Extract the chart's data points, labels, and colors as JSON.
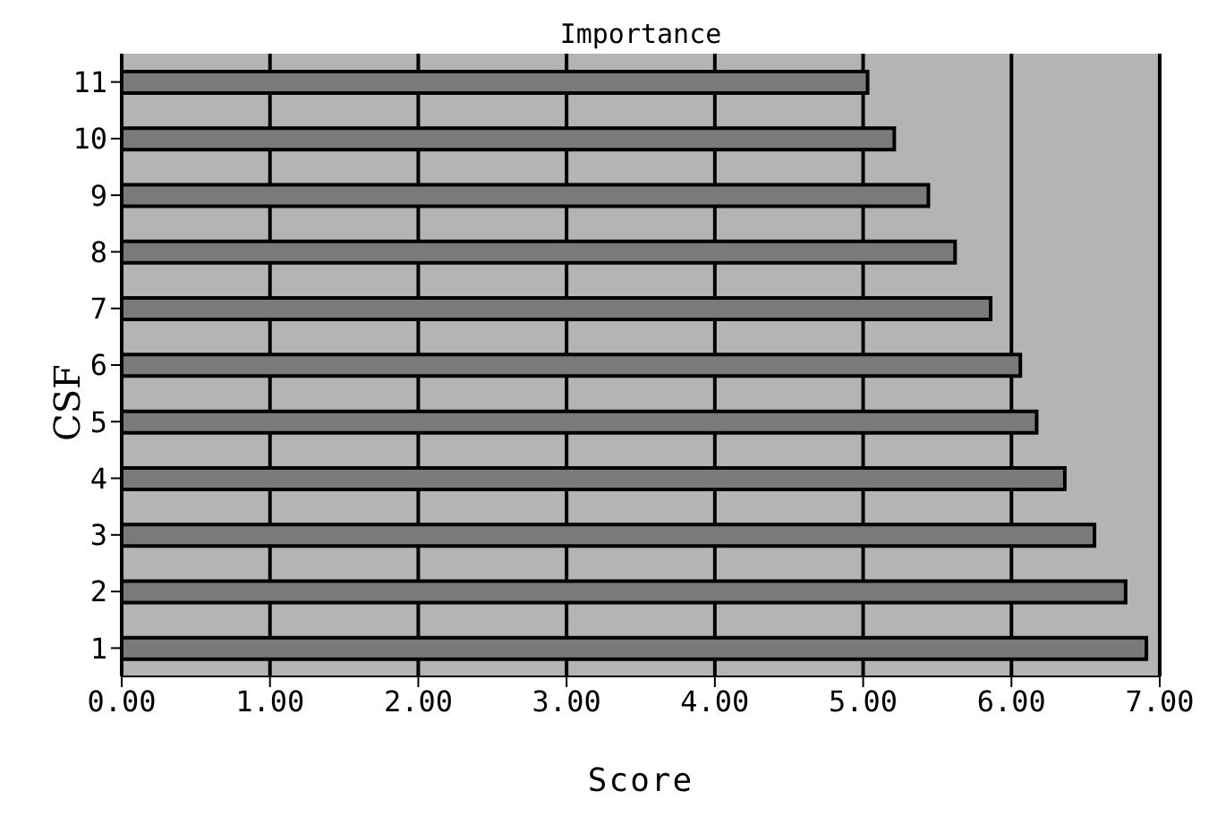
{
  "chart_data": {
    "type": "bar",
    "orientation": "horizontal",
    "title": "Importance",
    "xlabel": "Score",
    "ylabel": "CSF",
    "categories": [
      "11",
      "10",
      "9",
      "8",
      "7",
      "6",
      "5",
      "4",
      "3",
      "2",
      "1"
    ],
    "values": [
      5.03,
      5.21,
      5.44,
      5.62,
      5.86,
      6.06,
      6.17,
      6.36,
      6.56,
      6.77,
      6.91
    ],
    "color": "#7a7a7a",
    "xlim": [
      0,
      7
    ],
    "xticks": [
      {
        "value": 0,
        "label": "0.00"
      },
      {
        "value": 1,
        "label": "1.00"
      },
      {
        "value": 2,
        "label": "2.00"
      },
      {
        "value": 3,
        "label": "3.00"
      },
      {
        "value": 4,
        "label": "4.00"
      },
      {
        "value": 5,
        "label": "5.00"
      },
      {
        "value": 6,
        "label": "6.00"
      },
      {
        "value": 7,
        "label": "7.00"
      }
    ],
    "grid": "x",
    "legend": false
  }
}
